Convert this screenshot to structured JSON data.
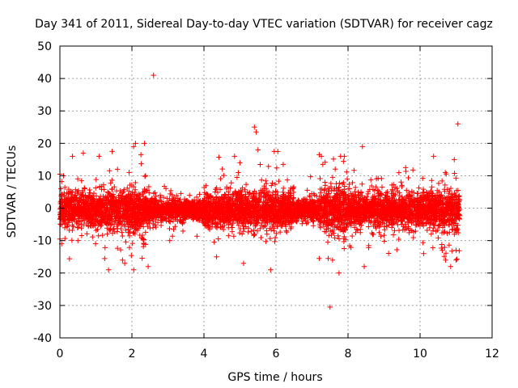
{
  "chart_data": {
    "type": "scatter",
    "title": "Day 341 of 2011, Sidereal Day-to-day VTEC variation (SDTVAR) for receiver cagz",
    "xlabel": "GPS time / hours",
    "ylabel": "SDTVAR / TECUs",
    "xlim": [
      0,
      12
    ],
    "ylim": [
      -40,
      50
    ],
    "xticks": [
      "0",
      "2",
      "4",
      "6",
      "8",
      "10",
      "12"
    ],
    "yticks": [
      "-40",
      "-30",
      "-20",
      "-10",
      "0",
      "10",
      "20",
      "30",
      "40",
      "50"
    ],
    "grid": true,
    "marker": "+",
    "color": "#ff0000",
    "series": [
      {
        "name": "SDTVAR",
        "x_start": 0.0,
        "x_end": 11.1,
        "bulk_spread": [
          {
            "x": [
              0.0,
              1.0
            ],
            "sd": 2.6
          },
          {
            "x": [
              1.0,
              2.5
            ],
            "sd": 3.2
          },
          {
            "x": [
              2.5,
              4.0
            ],
            "sd": 1.6
          },
          {
            "x": [
              4.0,
              6.5
            ],
            "sd": 2.8
          },
          {
            "x": [
              6.5,
              7.2
            ],
            "sd": 1.6
          },
          {
            "x": [
              7.2,
              8.0
            ],
            "sd": 3.8
          },
          {
            "x": [
              8.0,
              10.5
            ],
            "sd": 2.6
          },
          {
            "x": [
              10.5,
              11.1
            ],
            "sd": 3.2
          }
        ],
        "notable_points": [
          {
            "x": 2.6,
            "y": 41
          },
          {
            "x": 7.5,
            "y": -30.5
          },
          {
            "x": 11.05,
            "y": 26
          },
          {
            "x": 5.4,
            "y": 25
          },
          {
            "x": 5.45,
            "y": 23.5
          },
          {
            "x": 2.1,
            "y": 20
          },
          {
            "x": 2.35,
            "y": 20
          },
          {
            "x": 2.05,
            "y": 19
          },
          {
            "x": 8.4,
            "y": 19
          },
          {
            "x": 5.5,
            "y": 18
          },
          {
            "x": 5.95,
            "y": 17.5
          },
          {
            "x": 6.05,
            "y": 17.5
          },
          {
            "x": 7.2,
            "y": 16.5
          },
          {
            "x": 0.65,
            "y": 17
          },
          {
            "x": 0.35,
            "y": 16
          },
          {
            "x": 1.45,
            "y": 17.5
          },
          {
            "x": 2.25,
            "y": 16.5
          },
          {
            "x": 4.85,
            "y": 16
          },
          {
            "x": 10.95,
            "y": 15
          },
          {
            "x": 5.0,
            "y": 14
          },
          {
            "x": 6.2,
            "y": 13.5
          },
          {
            "x": 7.3,
            "y": 13.5
          },
          {
            "x": 9.6,
            "y": 12.5
          },
          {
            "x": 1.6,
            "y": 12
          },
          {
            "x": 10.7,
            "y": 11
          },
          {
            "x": 0.0,
            "y": 10.5
          },
          {
            "x": 0.1,
            "y": 10
          },
          {
            "x": 1.35,
            "y": -19
          },
          {
            "x": 2.05,
            "y": -19
          },
          {
            "x": 2.45,
            "y": -18
          },
          {
            "x": 1.8,
            "y": -17
          },
          {
            "x": 5.1,
            "y": -17
          },
          {
            "x": 5.85,
            "y": -19
          },
          {
            "x": 7.75,
            "y": -20
          },
          {
            "x": 8.45,
            "y": -18
          },
          {
            "x": 10.85,
            "y": -18
          },
          {
            "x": 4.35,
            "y": -15
          },
          {
            "x": 7.2,
            "y": -15.5
          },
          {
            "x": 7.45,
            "y": -15.5
          },
          {
            "x": 10.1,
            "y": -14
          },
          {
            "x": 0.05,
            "y": -11
          },
          {
            "x": 0.5,
            "y": -10
          },
          {
            "x": 3.05,
            "y": -10
          },
          {
            "x": 11.0,
            "y": -13
          },
          {
            "x": 11.0,
            "y": -16
          }
        ]
      }
    ]
  }
}
